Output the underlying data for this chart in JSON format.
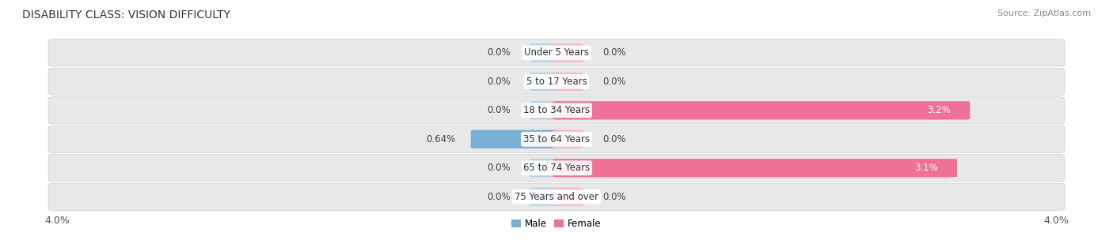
{
  "title": "DISABILITY CLASS: VISION DIFFICULTY",
  "source": "Source: ZipAtlas.com",
  "categories": [
    "Under 5 Years",
    "5 to 17 Years",
    "18 to 34 Years",
    "35 to 64 Years",
    "65 to 74 Years",
    "75 Years and over"
  ],
  "male_values": [
    0.0,
    0.0,
    0.0,
    0.64,
    0.0,
    0.0
  ],
  "female_values": [
    0.0,
    0.0,
    3.2,
    0.0,
    3.1,
    0.0
  ],
  "male_color": "#7aafd4",
  "female_color": "#f07098",
  "male_color_light": "#b8d0e8",
  "female_color_light": "#f4b8c8",
  "row_bg_color": "#e8e8e8",
  "row_border_color": "#d0d0d0",
  "axis_limit": 4.0,
  "title_fontsize": 10,
  "source_fontsize": 8,
  "label_fontsize": 8.5,
  "value_fontsize": 8.5,
  "tick_fontsize": 9,
  "background_color": "#ffffff"
}
